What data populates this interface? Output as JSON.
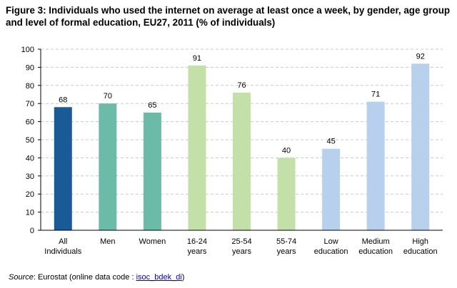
{
  "title": "Figure 3: Individuals who used the internet on average at least once a week, by gender, age group and level of formal education, EU27, 2011 (% of individuals)",
  "chart_data": {
    "type": "bar",
    "categories": [
      [
        "All",
        "Individuals"
      ],
      [
        "Men"
      ],
      [
        "Women"
      ],
      [
        "16-24",
        "years"
      ],
      [
        "25-54",
        "years"
      ],
      [
        "55-74",
        "years"
      ],
      [
        "Low",
        "education"
      ],
      [
        "Medium",
        "education"
      ],
      [
        "High",
        "education"
      ]
    ],
    "values": [
      68,
      70,
      65,
      91,
      76,
      40,
      45,
      71,
      92
    ],
    "colors": [
      "#1a5a96",
      "#6cbaa8",
      "#6cbaa8",
      "#c2e0a8",
      "#c2e0a8",
      "#c2e0a8",
      "#b6d0ee",
      "#b6d0ee",
      "#b6d0ee"
    ],
    "ylim": [
      0,
      100
    ],
    "yticks": [
      0,
      10,
      20,
      30,
      40,
      50,
      60,
      70,
      80,
      90,
      100
    ],
    "grid": true,
    "grid_style": "dashed",
    "data_labels": true
  },
  "source": {
    "label": "Source",
    "text": ": Eurostat (online data code : ",
    "code": "isoc_bdek_di",
    "close": ")"
  }
}
